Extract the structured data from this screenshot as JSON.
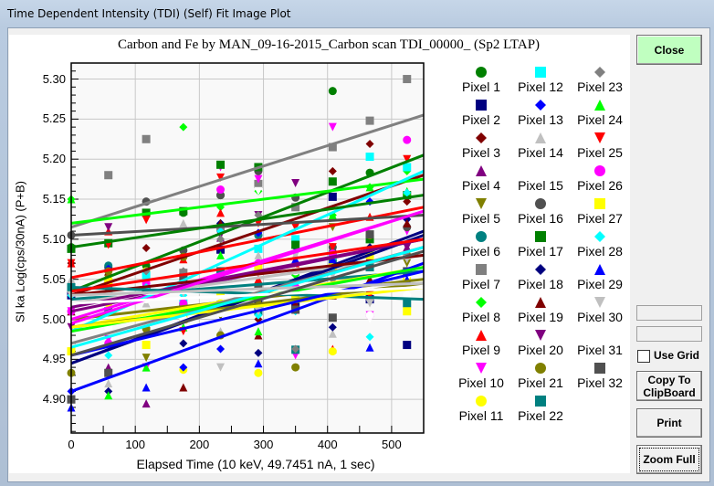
{
  "window": {
    "title": "Time Dependent Intensity (TDI) (Self) Fit Image Plot"
  },
  "buttons": {
    "close": "Close",
    "use_grid": "Use Grid",
    "copy": "Copy To ClipBoard",
    "print": "Print",
    "zoom_full": "Zoom Full"
  },
  "use_grid_checked": false,
  "chart_data": {
    "type": "scatter",
    "title": "Carbon and Fe by MAN_09-16-2015_Carbon scan TDI_00000_ (Sp2 LTAP)",
    "xlabel": "Elapsed Time (10 keV, 49.7451 nA, 1 sec)",
    "ylabel": "SI ka Log(cps/30nA) (P+B)",
    "xlim": [
      0,
      550
    ],
    "ylim": [
      4.858,
      5.32
    ],
    "xticks": [
      "0",
      "100",
      "200",
      "300",
      "400",
      "500"
    ],
    "yticks": [
      "4.90",
      "4.95",
      "5.00",
      "5.05",
      "5.10",
      "5.15",
      "5.20",
      "5.25",
      "5.30"
    ],
    "grid": true,
    "legend": "right",
    "x": [
      0,
      58,
      117,
      175,
      233,
      292,
      350,
      408,
      466,
      524
    ],
    "series": [
      {
        "name": "Pixel 1",
        "color": "#008000",
        "marker": "circle",
        "fit": [
          5.035,
          5.205
        ],
        "values": [
          5.09,
          5.065,
          5.067,
          5.133,
          5.155,
          5.105,
          5.1,
          5.285,
          5.183,
          5.155
        ]
      },
      {
        "name": "Pixel 2",
        "color": "#000080",
        "marker": "square",
        "fit": [
          4.945,
          5.11
        ],
        "values": [
          5.03,
          5.025,
          5.035,
          5.01,
          5.087,
          5.02,
          5.018,
          5.153,
          5.025,
          4.968
        ]
      },
      {
        "name": "Pixel 3",
        "color": "#800000",
        "marker": "diamond",
        "fit": [
          5.03,
          5.18
        ],
        "values": [
          5.07,
          5.065,
          5.089,
          5.04,
          5.06,
          5.0,
          5.035,
          5.185,
          5.219,
          5.147
        ]
      },
      {
        "name": "Pixel 4",
        "color": "#800080",
        "marker": "triangle-up",
        "fit": [
          5.01,
          5.1
        ],
        "values": [
          5.01,
          4.94,
          4.895,
          5.0,
          5.102,
          5.07,
          5.06,
          5.09,
          5.07,
          5.09
        ]
      },
      {
        "name": "Pixel 5",
        "color": "#808000",
        "marker": "triangle-down",
        "fit": [
          5.0,
          5.05
        ],
        "values": [
          5.03,
          5.05,
          4.952,
          5.03,
          5.004,
          5.02,
          5.07,
          5.115,
          5.07,
          5.07
        ]
      },
      {
        "name": "Pixel 6",
        "color": "#008080",
        "marker": "circle",
        "fit": [
          5.025,
          5.06
        ],
        "values": [
          5.04,
          5.067,
          5.04,
          5.02,
          5.055,
          5.105,
          5.06,
          5.08,
          5.07,
          5.06
        ]
      },
      {
        "name": "Pixel 7",
        "color": "#808080",
        "marker": "square",
        "fit": [
          5.115,
          5.255
        ],
        "values": [
          4.9,
          5.18,
          5.225,
          5.058,
          5.115,
          5.169,
          5.14,
          5.215,
          5.248,
          5.3
        ]
      },
      {
        "name": "Pixel 8",
        "color": "#00ff00",
        "marker": "diamond",
        "fit": [
          5.12,
          5.175
        ],
        "values": [
          5.15,
          5.095,
          5.035,
          5.24,
          5.14,
          5.16,
          5.055,
          5.13,
          5.165,
          5.185
        ]
      },
      {
        "name": "Pixel 9",
        "color": "#ff0000",
        "marker": "triangle-up",
        "fit": [
          5.052,
          5.14
        ],
        "values": [
          5.07,
          5.11,
          4.985,
          5.075,
          5.133,
          5.05,
          5.07,
          4.963,
          5.128,
          5.12
        ]
      },
      {
        "name": "Pixel 10",
        "color": "#ff00ff",
        "marker": "triangle-down",
        "fit": [
          5.0,
          5.135
        ],
        "values": [
          5.01,
          4.975,
          4.94,
          5.02,
          5.19,
          5.175,
          4.955,
          5.24,
          5.005,
          5.11
        ]
      },
      {
        "name": "Pixel 11",
        "color": "#ffff00",
        "marker": "circle",
        "fit": [
          4.99,
          5.065
        ],
        "values": [
          4.96,
          5.02,
          5.06,
          4.937,
          5.02,
          4.933,
          5.03,
          4.96,
          5.08,
          5.05
        ]
      },
      {
        "name": "Pixel 12",
        "color": "#00ffff",
        "marker": "square",
        "fit": [
          4.985,
          5.185
        ],
        "values": [
          5.04,
          5.03,
          5.055,
          5.02,
          5.05,
          5.088,
          5.1,
          5.08,
          5.203,
          5.19
        ]
      },
      {
        "name": "Pixel 13",
        "color": "#0000ff",
        "marker": "diamond",
        "fit": [
          4.91,
          5.07
        ],
        "values": [
          4.91,
          5.063,
          5.03,
          4.94,
          4.963,
          5.108,
          5.09,
          5.07,
          5.147,
          5.125
        ]
      },
      {
        "name": "Pixel 14",
        "color": "#c0c0c0",
        "marker": "triangle-up",
        "fit": [
          5.02,
          5.08
        ],
        "values": [
          5.05,
          4.92,
          5.02,
          5.12,
          4.985,
          5.08,
          5.08,
          4.982,
          5.07,
          5.08
        ]
      },
      {
        "name": "Pixel 15",
        "color": "#ffffff",
        "marker": "triangle-down",
        "fit": [
          5.03,
          5.04
        ],
        "values": [
          5.03,
          4.99,
          5.03,
          5.035,
          5.03,
          5.16,
          5.07,
          5.05,
          5.0,
          5.05
        ]
      },
      {
        "name": "Pixel 16",
        "color": "#505050",
        "marker": "circle",
        "fit": [
          5.105,
          5.13
        ],
        "values": [
          5.105,
          5.04,
          5.147,
          5.086,
          5.155,
          5.185,
          5.152,
          5.09,
          5.105,
          5.115
        ]
      },
      {
        "name": "Pixel 17",
        "color": "#008000",
        "marker": "square",
        "fit": [
          5.09,
          5.155
        ],
        "values": [
          5.088,
          5.095,
          5.133,
          5.135,
          5.193,
          5.19,
          5.093,
          5.172,
          5.1,
          5.155
        ]
      },
      {
        "name": "Pixel 18",
        "color": "#000080",
        "marker": "diamond",
        "fit": [
          4.945,
          5.105
        ],
        "values": [
          5.03,
          4.91,
          5.03,
          4.97,
          5.12,
          4.958,
          5.035,
          4.99,
          5.09,
          5.125
        ]
      },
      {
        "name": "Pixel 19",
        "color": "#800000",
        "marker": "triangle-up",
        "fit": [
          5.03,
          5.08
        ],
        "values": [
          5.01,
          5.06,
          5.03,
          4.915,
          5.12,
          4.98,
          5.02,
          5.03,
          5.05,
          5.12
        ]
      },
      {
        "name": "Pixel 20",
        "color": "#800080",
        "marker": "triangle-down",
        "fit": [
          5.015,
          5.1
        ],
        "values": [
          4.99,
          5.115,
          4.985,
          5.03,
          5.105,
          5.13,
          5.17,
          5.06,
          5.07,
          5.09
        ]
      },
      {
        "name": "Pixel 21",
        "color": "#808000",
        "marker": "circle",
        "fit": [
          4.99,
          5.045
        ],
        "values": [
          4.933,
          5.06,
          4.988,
          5.078,
          4.98,
          5.03,
          4.94,
          5.03,
          5.105,
          5.08
        ]
      },
      {
        "name": "Pixel 22",
        "color": "#008080",
        "marker": "square",
        "fit": [
          5.04,
          5.025
        ],
        "values": [
          5.04,
          5.01,
          5.035,
          5.015,
          5.06,
          5.01,
          4.962,
          5.07,
          5.065,
          5.02
        ]
      },
      {
        "name": "Pixel 23",
        "color": "#808080",
        "marker": "diamond",
        "fit": [
          4.97,
          5.09
        ],
        "values": [
          5.03,
          5.04,
          5.06,
          5.06,
          5.1,
          5.13,
          4.963,
          5.05,
          5.025,
          5.08
        ]
      },
      {
        "name": "Pixel 24",
        "color": "#00ff00",
        "marker": "triangle-up",
        "fit": [
          4.985,
          5.065
        ],
        "values": [
          5.15,
          4.905,
          4.94,
          4.99,
          5.08,
          4.985,
          5.06,
          5.13,
          5.165,
          5.16
        ]
      },
      {
        "name": "Pixel 25",
        "color": "#ff0000",
        "marker": "triangle-down",
        "fit": [
          5.035,
          5.1
        ],
        "values": [
          5.07,
          5.093,
          5.124,
          4.985,
          5.177,
          5.12,
          5.115,
          5.09,
          5.03,
          5.2
        ]
      },
      {
        "name": "Pixel 26",
        "color": "#ff00ff",
        "marker": "circle",
        "fit": [
          4.995,
          5.135
        ],
        "values": [
          5.01,
          4.97,
          5.045,
          5.02,
          5.162,
          5.07,
          5.04,
          5.082,
          5.005,
          5.224
        ]
      },
      {
        "name": "Pixel 27",
        "color": "#ffff00",
        "marker": "square",
        "fit": [
          4.99,
          5.04
        ],
        "values": [
          4.96,
          5.047,
          4.968,
          5.0,
          5.033,
          5.063,
          5.028,
          5.065,
          5.08,
          5.01
        ]
      },
      {
        "name": "Pixel 28",
        "color": "#00ffff",
        "marker": "diamond",
        "fit": [
          4.965,
          5.09
        ],
        "values": [
          5.03,
          4.955,
          5.04,
          5.03,
          5.11,
          5.005,
          5.01,
          5.06,
          4.978,
          5.158
        ]
      },
      {
        "name": "Pixel 29",
        "color": "#0000ff",
        "marker": "triangle-up",
        "fit": [
          4.955,
          5.06
        ],
        "values": [
          4.89,
          5.03,
          4.915,
          5.045,
          5.05,
          4.945,
          5.075,
          5.075,
          4.965,
          5.05
        ]
      },
      {
        "name": "Pixel 30",
        "color": "#c0c0c0",
        "marker": "triangle-down",
        "fit": [
          5.03,
          5.045
        ],
        "values": [
          5.03,
          5.03,
          5.03,
          5.033,
          4.94,
          5.01,
          5.08,
          5.055,
          5.02,
          5.075
        ]
      },
      {
        "name": "Pixel 31",
        "color": "#ffffff",
        "marker": "circle",
        "fit": [
          5.02,
          5.04
        ],
        "values": [
          5.0,
          4.99,
          5.025,
          5.0,
          5.008,
          5.03,
          5.06,
          5.04,
          5.005,
          5.03
        ]
      },
      {
        "name": "Pixel 32",
        "color": "#505050",
        "marker": "square",
        "fit": [
          4.955,
          5.085
        ],
        "values": [
          4.9,
          4.933,
          5.033,
          5.052,
          5.018,
          5.04,
          5.012,
          5.002,
          5.106,
          5.06
        ]
      }
    ]
  }
}
